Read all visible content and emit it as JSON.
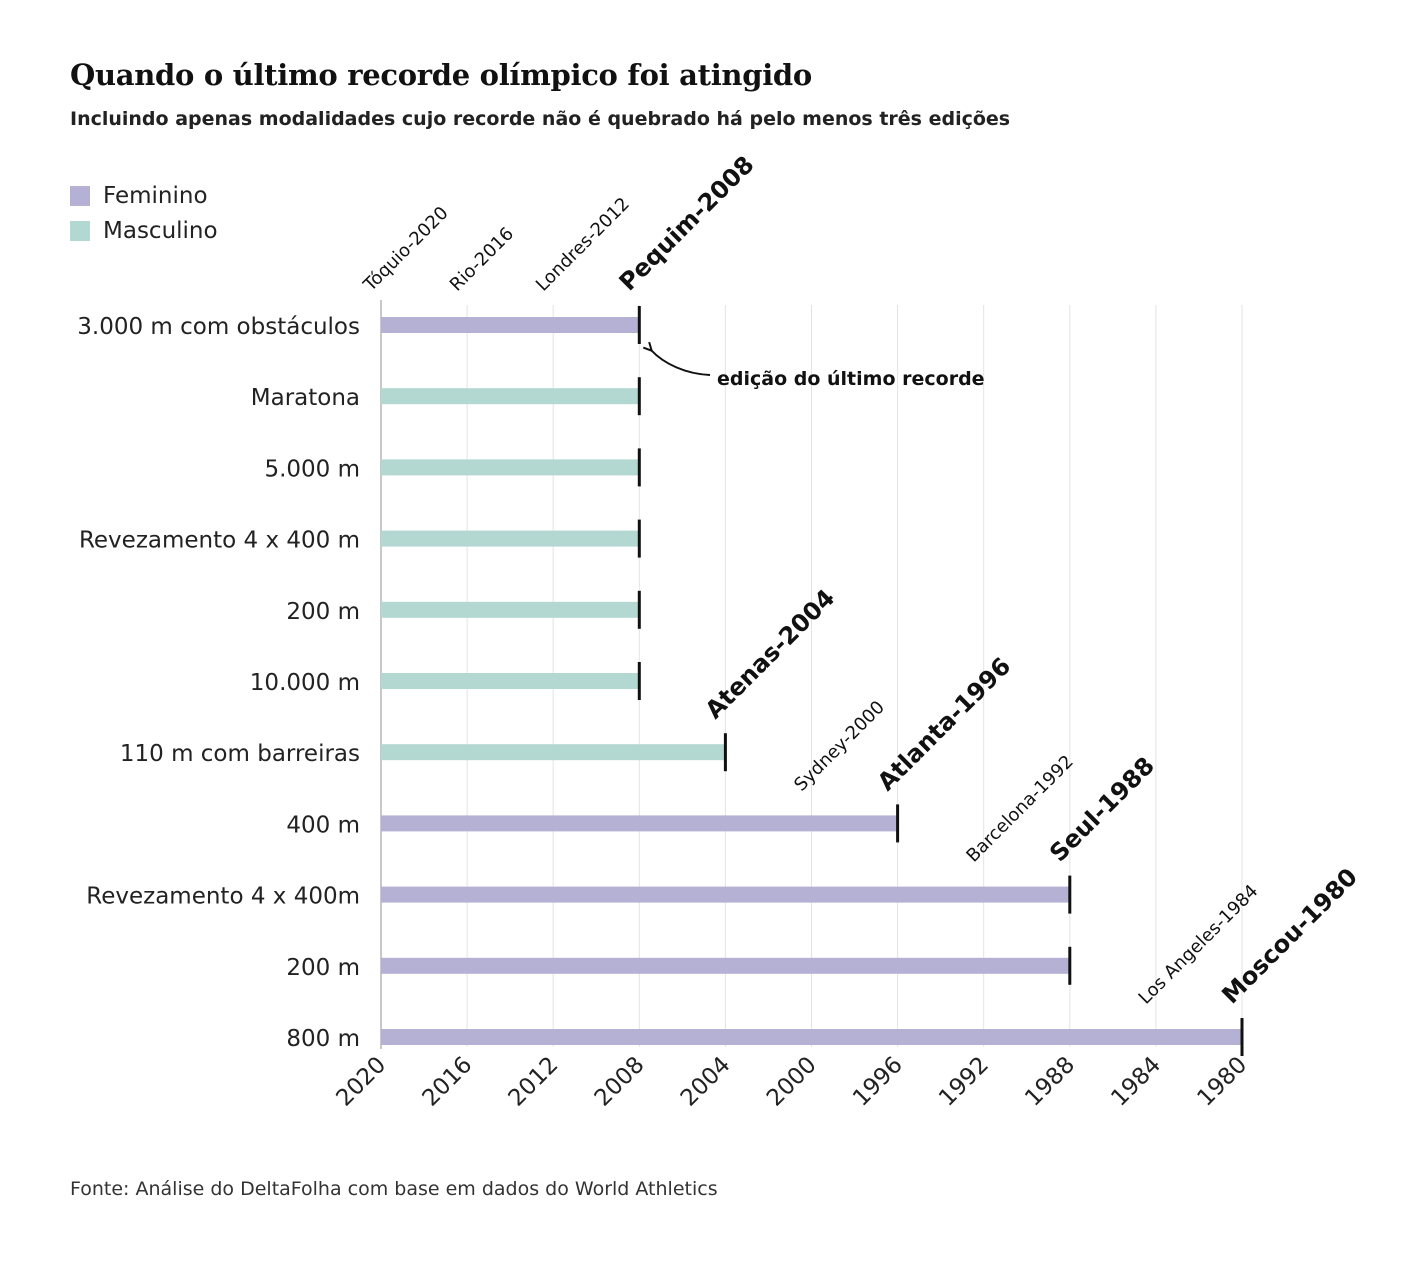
{
  "title": "Quando o último recorde olímpico foi atingido",
  "subtitle": "Incluindo apenas modalidades cujo recorde não é quebrado há pelo menos três edições",
  "legend": [
    {
      "label": "Feminino",
      "color": "#b5b1d4"
    },
    {
      "label": "Masculino",
      "color": "#b3d8d2"
    }
  ],
  "source": "Fonte: Análise do DeltaFolha com base em dados do World Athletics",
  "annotation": "edição do último recorde",
  "chart_data": {
    "type": "bar",
    "orientation": "horizontal",
    "x_axis": {
      "reversed": true,
      "xlim": [
        2020,
        1980
      ],
      "ticks": [
        "2020",
        "2016",
        "2012",
        "2008",
        "2004",
        "2000",
        "1996",
        "1992",
        "1988",
        "1984",
        "1980"
      ]
    },
    "grid": true,
    "edition_labels": [
      {
        "text": "Tóquio-2020",
        "year": 2020,
        "bold": false
      },
      {
        "text": "Rio-2016",
        "year": 2016,
        "bold": false
      },
      {
        "text": "Londres-2012",
        "year": 2012,
        "bold": false
      },
      {
        "text": "Pequim-2008",
        "year": 2008,
        "bold": true
      },
      {
        "text": "Atenas-2004",
        "year": 2004,
        "bold": true
      },
      {
        "text": "Sydney-2000",
        "year": 2000,
        "bold": false
      },
      {
        "text": "Atlanta-1996",
        "year": 1996,
        "bold": true
      },
      {
        "text": "Barcelona-1992",
        "year": 1992,
        "bold": false
      },
      {
        "text": "Seul-1988",
        "year": 1988,
        "bold": true
      },
      {
        "text": "Los Angeles-1984",
        "year": 1984,
        "bold": false
      },
      {
        "text": "Moscou-1980",
        "year": 1980,
        "bold": true
      }
    ],
    "categories": [
      "3.000 m com obstáculos",
      "Maratona",
      "5.000 m",
      "Revezamento 4 x 400 m",
      "200 m",
      "10.000 m",
      "110 m com barreiras",
      "400 m",
      "Revezamento 4 x 400m",
      "200 m",
      "800 m"
    ],
    "values": [
      2008,
      2008,
      2008,
      2008,
      2008,
      2008,
      2004,
      1996,
      1988,
      1988,
      1980
    ],
    "genders": [
      "Feminino",
      "Masculino",
      "Masculino",
      "Masculino",
      "Masculino",
      "Masculino",
      "Masculino",
      "Feminino",
      "Feminino",
      "Feminino",
      "Feminino"
    ]
  }
}
